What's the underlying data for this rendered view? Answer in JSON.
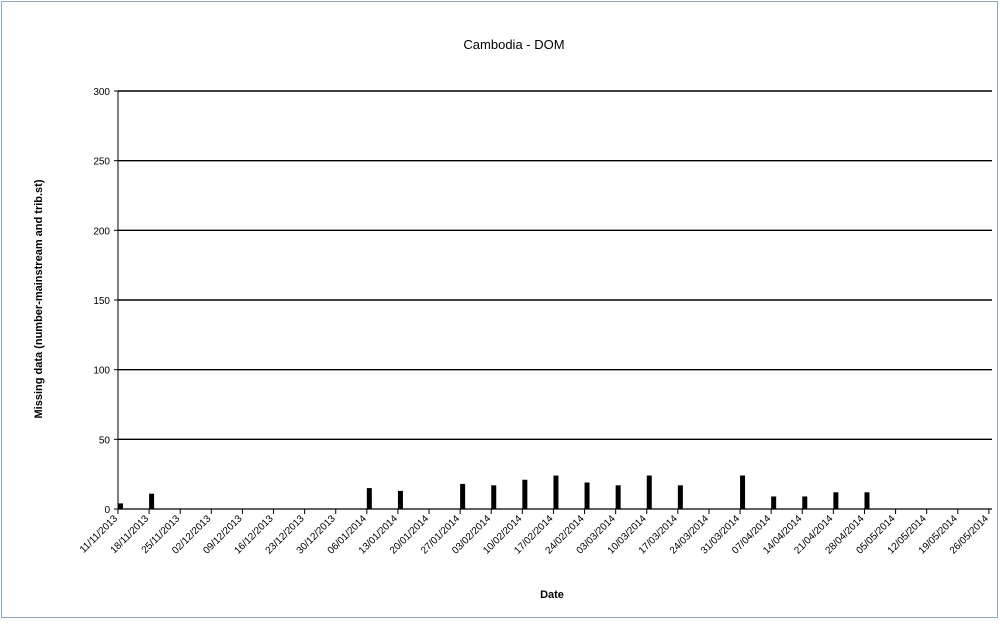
{
  "chart_data": {
    "type": "bar",
    "title": "Cambodia - DOM",
    "xlabel": "Date",
    "ylabel": "Missing data (number-mainstream and trib.st)",
    "ylim": [
      0,
      300
    ],
    "yticks": [
      "0",
      "50",
      "100",
      "150",
      "200",
      "250",
      "300"
    ],
    "grid": true,
    "legend": "none",
    "categories": [
      "11/11/2013",
      "18/11/2013",
      "25/11/2013",
      "02/12/2013",
      "09/12/2013",
      "16/12/2013",
      "23/12/2013",
      "30/12/2013",
      "06/01/2014",
      "13/01/2014",
      "20/01/2014",
      "27/01/2014",
      "03/02/2014",
      "10/02/2014",
      "17/02/2014",
      "24/02/2014",
      "03/03/2014",
      "10/03/2014",
      "17/03/2014",
      "24/03/2014",
      "31/03/2014",
      "07/04/2014",
      "14/04/2014",
      "21/04/2014",
      "28/04/2014",
      "05/05/2014",
      "12/05/2014",
      "19/05/2014",
      "26/05/2014"
    ],
    "values": [
      4,
      11,
      0,
      0,
      0,
      0,
      0,
      0,
      15,
      13,
      0,
      18,
      17,
      21,
      24,
      19,
      17,
      24,
      17,
      0,
      24,
      9,
      9,
      12,
      12,
      0,
      0,
      0,
      0
    ],
    "bar_color": "#000000"
  }
}
